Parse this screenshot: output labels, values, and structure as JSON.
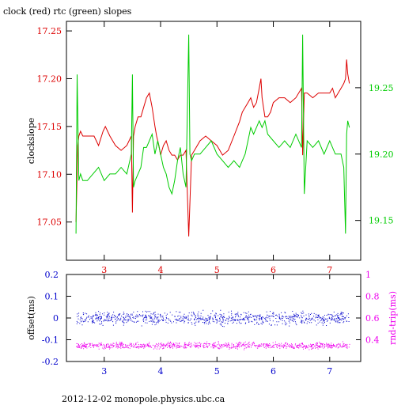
{
  "footer_text": "2012-12-02  monopole.physics.ubc.ca",
  "chart_data": [
    {
      "type": "line",
      "title": "clock (red) rtc (green) slopes",
      "xlabel": "",
      "ylabel": "clockslope",
      "xlim": [
        2.33,
        7.55
      ],
      "ylim": [
        17.01,
        17.26
      ],
      "y2lim": [
        19.12,
        19.3
      ],
      "x_ticks": [
        3,
        4,
        5,
        6,
        7
      ],
      "y_ticks": [
        17.05,
        17.1,
        17.15,
        17.2,
        17.25
      ],
      "y2_ticks": [
        19.15,
        19.2,
        19.25
      ],
      "grid": false,
      "series": [
        {
          "name": "clock",
          "axis": "left",
          "color": "#dd0000",
          "x": [
            2.5,
            2.53,
            2.55,
            2.58,
            2.62,
            2.68,
            2.75,
            2.82,
            2.9,
            2.98,
            3.02,
            3.1,
            3.2,
            3.3,
            3.4,
            3.48,
            3.5,
            3.52,
            3.55,
            3.6,
            3.65,
            3.7,
            3.75,
            3.8,
            3.85,
            3.9,
            3.93,
            3.97,
            4.0,
            4.05,
            4.1,
            4.15,
            4.2,
            4.25,
            4.3,
            4.35,
            4.4,
            4.45,
            4.5,
            4.55,
            4.6,
            4.7,
            4.8,
            4.9,
            5.0,
            5.1,
            5.2,
            5.3,
            5.4,
            5.45,
            5.5,
            5.55,
            5.6,
            5.65,
            5.7,
            5.75,
            5.78,
            5.8,
            5.85,
            5.9,
            5.95,
            6.0,
            6.1,
            6.2,
            6.3,
            6.4,
            6.5,
            6.52,
            6.55,
            6.6,
            6.7,
            6.8,
            6.9,
            7.0,
            7.05,
            7.1,
            7.15,
            7.2,
            7.25,
            7.28,
            7.3,
            7.32,
            7.35
          ],
          "y": [
            17.05,
            17.13,
            17.14,
            17.145,
            17.14,
            17.14,
            17.14,
            17.14,
            17.13,
            17.145,
            17.15,
            17.14,
            17.13,
            17.125,
            17.13,
            17.14,
            17.06,
            17.14,
            17.15,
            17.16,
            17.16,
            17.17,
            17.18,
            17.185,
            17.17,
            17.15,
            17.14,
            17.13,
            17.12,
            17.13,
            17.135,
            17.125,
            17.12,
            17.12,
            17.115,
            17.12,
            17.12,
            17.125,
            17.035,
            17.12,
            17.125,
            17.135,
            17.14,
            17.135,
            17.13,
            17.12,
            17.125,
            17.14,
            17.155,
            17.165,
            17.17,
            17.175,
            17.18,
            17.17,
            17.175,
            17.19,
            17.2,
            17.18,
            17.16,
            17.16,
            17.165,
            17.175,
            17.18,
            17.18,
            17.175,
            17.18,
            17.19,
            17.12,
            17.185,
            17.185,
            17.18,
            17.185,
            17.185,
            17.185,
            17.19,
            17.18,
            17.185,
            17.19,
            17.195,
            17.2,
            17.22,
            17.205,
            17.195
          ]
        },
        {
          "name": "rtc",
          "axis": "right",
          "color": "#00cc00",
          "x": [
            2.5,
            2.52,
            2.55,
            2.58,
            2.62,
            2.7,
            2.8,
            2.9,
            3.0,
            3.1,
            3.2,
            3.3,
            3.4,
            3.48,
            3.5,
            3.52,
            3.55,
            3.6,
            3.65,
            3.7,
            3.75,
            3.8,
            3.85,
            3.9,
            3.95,
            4.0,
            4.05,
            4.1,
            4.15,
            4.2,
            4.25,
            4.3,
            4.35,
            4.4,
            4.45,
            4.5,
            4.52,
            4.55,
            4.6,
            4.7,
            4.8,
            4.9,
            5.0,
            5.1,
            5.2,
            5.3,
            5.4,
            5.45,
            5.5,
            5.55,
            5.6,
            5.65,
            5.7,
            5.75,
            5.8,
            5.85,
            5.9,
            6.0,
            6.1,
            6.2,
            6.3,
            6.4,
            6.5,
            6.52,
            6.55,
            6.6,
            6.7,
            6.8,
            6.9,
            7.0,
            7.1,
            7.2,
            7.25,
            7.28,
            7.3,
            7.32,
            7.35
          ],
          "y": [
            19.14,
            19.26,
            19.18,
            19.185,
            19.18,
            19.18,
            19.185,
            19.19,
            19.18,
            19.185,
            19.185,
            19.19,
            19.185,
            19.2,
            19.26,
            19.175,
            19.18,
            19.185,
            19.19,
            19.205,
            19.205,
            19.21,
            19.215,
            19.2,
            19.21,
            19.2,
            19.19,
            19.185,
            19.175,
            19.17,
            19.18,
            19.195,
            19.205,
            19.185,
            19.175,
            19.29,
            19.2,
            19.195,
            19.2,
            19.2,
            19.205,
            19.21,
            19.2,
            19.195,
            19.19,
            19.195,
            19.19,
            19.195,
            19.2,
            19.21,
            19.22,
            19.215,
            19.22,
            19.225,
            19.22,
            19.225,
            19.215,
            19.21,
            19.205,
            19.21,
            19.205,
            19.215,
            19.205,
            19.29,
            19.17,
            19.21,
            19.205,
            19.21,
            19.2,
            19.21,
            19.2,
            19.2,
            19.19,
            19.14,
            19.215,
            19.225,
            19.22
          ]
        }
      ]
    },
    {
      "type": "scatter",
      "title": "",
      "xlabel": "",
      "ylabel": "offset(ms)",
      "y2label": "rnd-trip(ms)",
      "xlim": [
        2.33,
        7.55
      ],
      "ylim": [
        -0.2,
        0.2
      ],
      "y2lim": [
        0.2,
        1.0
      ],
      "x_ticks": [
        3,
        4,
        5,
        6,
        7
      ],
      "y_ticks": [
        -0.2,
        -0.1,
        0,
        0.1,
        0.2
      ],
      "y_tick_labels": [
        "-0.2",
        "-0.1",
        "0",
        "0.1",
        "0.2"
      ],
      "y2_ticks": [
        0.4,
        0.6,
        0.8,
        1.0
      ],
      "y2_tick_labels": [
        "0.4",
        "0.6",
        "0.8",
        "1"
      ],
      "grid": false,
      "series": [
        {
          "name": "offset",
          "axis": "left",
          "color": "#0000cc",
          "x_range": [
            2.5,
            7.35
          ],
          "center": 0.0,
          "spread": 0.018
        },
        {
          "name": "rnd-trip",
          "axis": "right",
          "color": "#ee00ee",
          "x_range": [
            2.5,
            7.35
          ],
          "center": 0.35,
          "spread": 0.018
        }
      ]
    }
  ]
}
